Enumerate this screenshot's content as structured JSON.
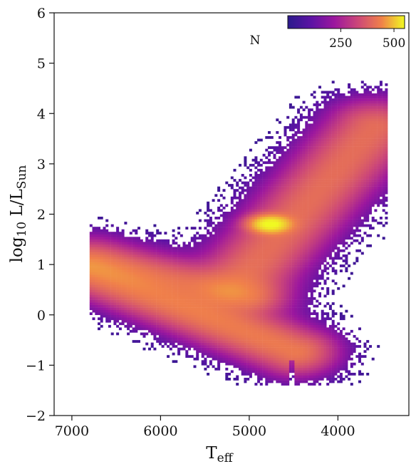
{
  "chart_data": {
    "type": "heatmap",
    "xlabel_main": "T",
    "xlabel_sub": "eff",
    "ylabel_main": "log",
    "ylabel_sub1": "10",
    "ylabel_mid": " L/L",
    "ylabel_sub2": "Sun",
    "x_ticks": [
      7000,
      6000,
      5000,
      4000
    ],
    "x_tick_labels": [
      "7000",
      "6000",
      "5000",
      "4000"
    ],
    "y_ticks": [
      -2,
      -1,
      0,
      1,
      2,
      3,
      4,
      5,
      6
    ],
    "y_tick_labels": [
      "−2",
      "−1",
      "0",
      "1",
      "2",
      "3",
      "4",
      "5",
      "6"
    ],
    "xlim": [
      7200,
      3200
    ],
    "ylim": [
      -2,
      6
    ],
    "x_inverted": true,
    "colormap": "plasma",
    "colorbar": {
      "label": "N",
      "range": [
        1,
        550
      ],
      "ticks": [
        250,
        500
      ],
      "tick_labels": [
        "250",
        "500"
      ],
      "placement": "top-right"
    },
    "density_components": [
      {
        "feature": "main sequence",
        "t_start": 6800,
        "t_end": 4500,
        "logL_start": 0.85,
        "logL_end": -0.75,
        "width": 0.22,
        "peak": 120
      },
      {
        "feature": "subgiant branch",
        "t_start": 6800,
        "t_end": 5000,
        "logL_start": 1.05,
        "logL_end": 0.35,
        "width": 0.2,
        "peak": 70
      },
      {
        "feature": "red giant branch",
        "t_start": 5200,
        "t_end": 3600,
        "logL_start": 0.5,
        "logL_end": 3.7,
        "width": 0.25,
        "peak": 90
      },
      {
        "feature": "red clump",
        "t_center": 4780,
        "logL_center": 1.78,
        "t_width": 130,
        "logL_width": 0.1,
        "peak": 540
      }
    ]
  },
  "colors": {
    "low": "#2f2bb5",
    "mid": "#9c179e",
    "high": "#fdb42f",
    "max": "#f0f921",
    "axis": "#111111"
  }
}
